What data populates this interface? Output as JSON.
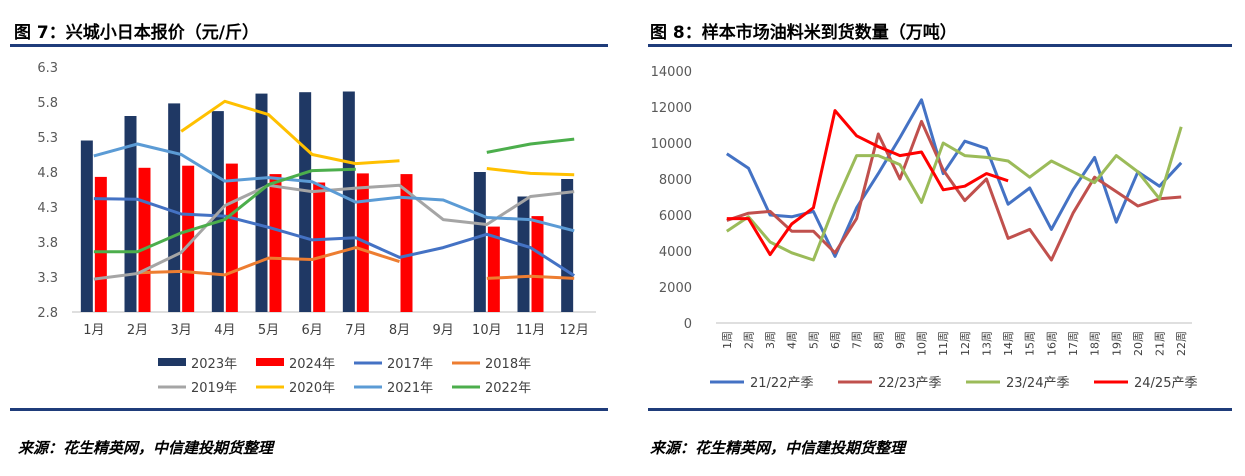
{
  "left": {
    "title": "图 7：兴城小日本报价（元/斤）",
    "source": "来源：花生精英网，中信建投期货整理"
  },
  "right": {
    "title": "图 8：样本市场油料米到货数量（万吨）",
    "source": "来源：花生精英网，中信建投期货整理"
  },
  "chart_data": [
    {
      "type": "bar",
      "title": "兴城小日本报价（元/斤）",
      "categories": [
        "1月",
        "2月",
        "3月",
        "4月",
        "5月",
        "6月",
        "7月",
        "8月",
        "9月",
        "10月",
        "11月",
        "12月"
      ],
      "y_tick_labels": [
        "2.8",
        "3.3",
        "3.8",
        "4.3",
        "4.8",
        "5.3",
        "5.8",
        "6.3"
      ],
      "ylim": [
        2.8,
        6.3
      ],
      "grid": false,
      "legend_position": "bottom",
      "bar_series": [
        {
          "name": "2023年",
          "color": "#1f3864",
          "values": [
            5.25,
            5.6,
            5.78,
            5.67,
            5.92,
            5.94,
            5.95,
            null,
            null,
            4.8,
            4.45,
            4.7
          ]
        },
        {
          "name": "2024年",
          "color": "#ff0000",
          "values": [
            4.73,
            4.86,
            4.89,
            4.92,
            4.77,
            4.65,
            4.78,
            4.77,
            null,
            4.02,
            4.17,
            null
          ]
        }
      ],
      "line_series": [
        {
          "name": "2017年",
          "color": "#4472c4",
          "values": [
            4.42,
            4.41,
            4.2,
            4.17,
            4.01,
            3.83,
            3.86,
            3.58,
            3.72,
            3.91,
            3.72,
            3.32
          ]
        },
        {
          "name": "2018年",
          "color": "#ed7d31",
          "values": [
            null,
            3.36,
            3.38,
            3.33,
            3.57,
            3.55,
            3.72,
            3.52,
            null,
            3.28,
            3.31,
            3.28
          ]
        },
        {
          "name": "2019年",
          "color": "#a5a5a5",
          "values": [
            3.27,
            3.35,
            3.65,
            4.32,
            4.61,
            4.52,
            4.57,
            4.61,
            4.12,
            4.05,
            4.45,
            4.52
          ]
        },
        {
          "name": "2020年",
          "color": "#ffc000",
          "values": [
            null,
            null,
            5.38,
            5.81,
            5.62,
            5.05,
            4.92,
            4.96,
            null,
            4.85,
            4.78,
            4.76
          ]
        },
        {
          "name": "2021年",
          "color": "#5b9bd5",
          "values": [
            5.03,
            5.2,
            5.05,
            4.67,
            4.72,
            4.66,
            4.37,
            4.44,
            4.4,
            4.15,
            4.12,
            3.96
          ]
        },
        {
          "name": "2022年",
          "color": "#4cae4c",
          "values": [
            3.66,
            3.66,
            3.93,
            4.12,
            4.62,
            4.82,
            4.84,
            null,
            null,
            5.08,
            5.2,
            5.27
          ]
        }
      ]
    },
    {
      "type": "line",
      "title": "样本市场油料米到货数量（万吨）",
      "categories": [
        "1周",
        "2周",
        "3周",
        "4周",
        "5周",
        "6周",
        "7周",
        "8周",
        "9周",
        "10周",
        "11周",
        "12周",
        "13周",
        "14周",
        "15周",
        "16周",
        "17周",
        "18周",
        "19周",
        "20周",
        "21周",
        "22周"
      ],
      "y_tick_labels": [
        "0",
        "2000",
        "4000",
        "6000",
        "8000",
        "10000",
        "12000",
        "14000"
      ],
      "ylim": [
        0,
        14000
      ],
      "grid": false,
      "legend_position": "bottom",
      "series": [
        {
          "name": "21/22产季",
          "color": "#4472c4",
          "values": [
            9400,
            8600,
            6000,
            5900,
            6200,
            3700,
            6400,
            8300,
            10300,
            12400,
            8300,
            10100,
            9700,
            6600,
            7500,
            5200,
            7400,
            9200,
            5600,
            8400,
            7600,
            8900
          ]
        },
        {
          "name": "22/23产季",
          "color": "#c0504d",
          "values": [
            5700,
            6100,
            6200,
            5100,
            5100,
            3900,
            5800,
            10500,
            8000,
            11200,
            8500,
            6800,
            8000,
            4700,
            5200,
            3500,
            6100,
            8100,
            7300,
            6500,
            6900,
            7000
          ]
        },
        {
          "name": "23/24产季",
          "color": "#9bbb59",
          "values": [
            5100,
            5900,
            4500,
            3900,
            3500,
            6600,
            9300,
            9300,
            8800,
            6700,
            10000,
            9300,
            9200,
            9000,
            8100,
            9000,
            8400,
            7800,
            9300,
            8400,
            6900,
            10900
          ]
        },
        {
          "name": "24/25产季",
          "color": "#ff0000",
          "values": [
            5800,
            5800,
            3800,
            5500,
            6400,
            11800,
            10400,
            9800,
            9300,
            9500,
            7400,
            7600,
            8300,
            7900,
            null,
            null,
            null,
            null,
            null,
            null,
            null,
            null
          ]
        }
      ]
    }
  ]
}
